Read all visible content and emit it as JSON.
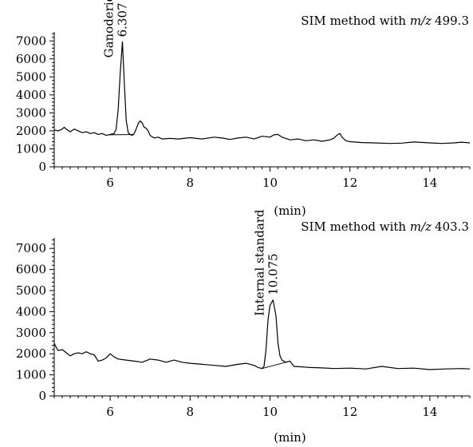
{
  "chart_data": [
    {
      "type": "line",
      "method_prefix": "SIM method with ",
      "mz_label": "m/z",
      "mz_value": "499.3",
      "xlabel": "(min)",
      "ylabel": "",
      "xlim": [
        4.6,
        15.0
      ],
      "ylim": [
        0,
        7500
      ],
      "x_ticks": [
        "6",
        "8",
        "10",
        "12",
        "14"
      ],
      "y_ticks": [
        "0",
        "1000",
        "2000",
        "3000",
        "4000",
        "5000",
        "6000",
        "7000"
      ],
      "peak": {
        "compound": "Ganoderic acid A",
        "retention_time": "6.307",
        "x": 6.307,
        "height": 6950,
        "baseline_from": [
          5.95,
          1780
        ],
        "baseline_to": [
          6.6,
          1800
        ]
      },
      "series": [
        {
          "x": [
            4.6,
            4.7,
            4.8,
            4.85,
            4.9,
            5.0,
            5.1,
            5.2,
            5.3,
            5.4,
            5.5,
            5.6,
            5.7,
            5.8,
            5.9,
            6.0,
            6.1,
            6.15,
            6.2,
            6.25,
            6.307,
            6.35,
            6.4,
            6.45,
            6.5,
            6.55,
            6.6,
            6.65,
            6.7,
            6.75,
            6.8,
            6.85,
            6.9,
            6.95,
            7.0,
            7.1,
            7.2,
            7.3,
            7.5,
            7.7,
            8.0,
            8.3,
            8.6,
            8.8,
            9.0,
            9.2,
            9.4,
            9.6,
            9.8,
            10.0,
            10.1,
            10.2,
            10.3,
            10.5,
            10.7,
            10.9,
            11.1,
            11.3,
            11.5,
            11.6,
            11.7,
            11.75,
            11.8,
            11.9,
            12.0,
            12.3,
            12.6,
            13.0,
            13.3,
            13.6,
            14.0,
            14.3,
            14.6,
            14.8,
            15.0
          ],
          "y": [
            2050,
            2000,
            2100,
            2200,
            2100,
            1950,
            2100,
            2000,
            1900,
            1950,
            1850,
            1900,
            1800,
            1850,
            1750,
            1800,
            1850,
            2100,
            3200,
            5200,
            6950,
            4800,
            2600,
            1900,
            1800,
            1750,
            1850,
            2100,
            2400,
            2550,
            2450,
            2200,
            2150,
            2000,
            1750,
            1600,
            1650,
            1550,
            1580,
            1550,
            1620,
            1550,
            1650,
            1600,
            1520,
            1600,
            1650,
            1550,
            1700,
            1650,
            1780,
            1800,
            1650,
            1500,
            1550,
            1450,
            1500,
            1420,
            1500,
            1600,
            1800,
            1850,
            1650,
            1450,
            1400,
            1350,
            1330,
            1300,
            1320,
            1380,
            1330,
            1300,
            1330,
            1370,
            1330
          ]
        }
      ]
    },
    {
      "type": "line",
      "method_prefix": "SIM method with ",
      "mz_label": "m/z",
      "mz_value": "403.3",
      "xlabel": "(min)",
      "ylabel": "",
      "xlim": [
        4.6,
        15.0
      ],
      "ylim": [
        0,
        7500
      ],
      "x_ticks": [
        "6",
        "8",
        "10",
        "12",
        "14"
      ],
      "y_ticks": [
        "0",
        "1000",
        "2000",
        "3000",
        "4000",
        "5000",
        "6000",
        "7000"
      ],
      "peak": {
        "compound": "Internal standard",
        "retention_time": "10.075",
        "x": 10.075,
        "height": 4550,
        "baseline_from": [
          9.8,
          1300
        ],
        "baseline_to": [
          10.5,
          1650
        ]
      },
      "series": [
        {
          "x": [
            4.6,
            4.65,
            4.7,
            4.8,
            4.9,
            5.0,
            5.1,
            5.2,
            5.3,
            5.4,
            5.5,
            5.6,
            5.7,
            5.8,
            5.9,
            6.0,
            6.1,
            6.2,
            6.4,
            6.6,
            6.8,
            7.0,
            7.2,
            7.4,
            7.6,
            7.8,
            8.0,
            8.3,
            8.6,
            8.9,
            9.2,
            9.4,
            9.6,
            9.7,
            9.8,
            9.85,
            9.9,
            9.95,
            10.0,
            10.075,
            10.15,
            10.2,
            10.25,
            10.3,
            10.4,
            10.5,
            10.6,
            10.8,
            11.0,
            11.3,
            11.6,
            12.0,
            12.4,
            12.8,
            13.2,
            13.6,
            14.0,
            14.4,
            14.8,
            15.0
          ],
          "y": [
            2500,
            2300,
            2150,
            2200,
            2050,
            1900,
            2000,
            2050,
            2000,
            2100,
            2000,
            1950,
            1650,
            1700,
            1800,
            2000,
            1850,
            1750,
            1700,
            1650,
            1600,
            1750,
            1700,
            1600,
            1700,
            1600,
            1550,
            1500,
            1450,
            1400,
            1500,
            1550,
            1450,
            1350,
            1300,
            1400,
            2200,
            3600,
            4300,
            4550,
            3800,
            2500,
            1900,
            1700,
            1600,
            1650,
            1400,
            1380,
            1350,
            1330,
            1300,
            1320,
            1280,
            1400,
            1300,
            1320,
            1250,
            1280,
            1300,
            1280
          ]
        }
      ]
    }
  ]
}
